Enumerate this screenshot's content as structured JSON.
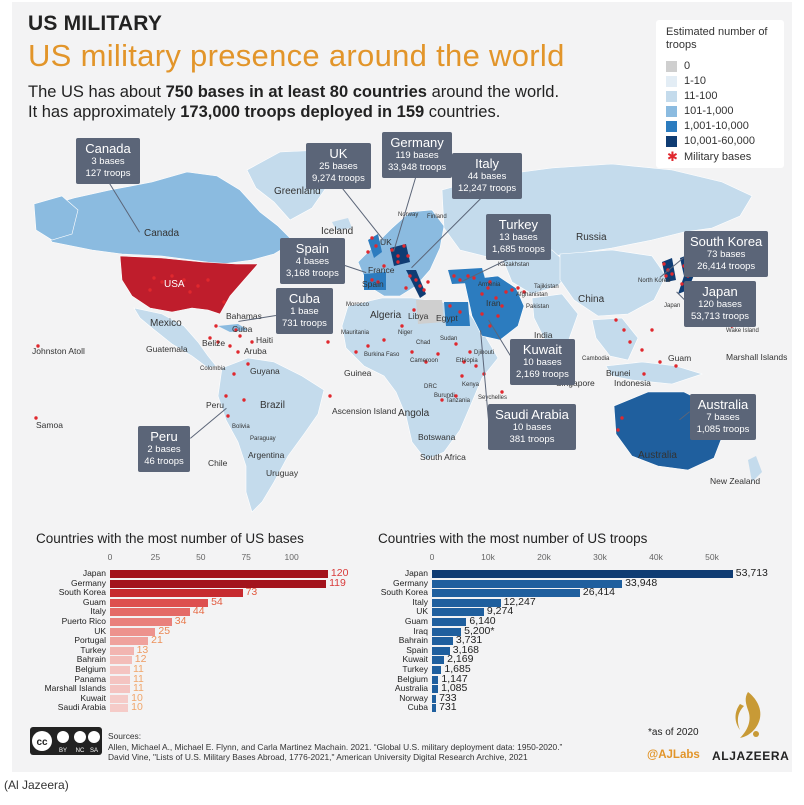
{
  "header": {
    "kicker": "US MILITARY",
    "title": "US military presence around the world",
    "sub1_a": "The US has about ",
    "sub1_b": "750 bases in at least 80 countries",
    "sub1_c": " around the world.",
    "sub2_a": "It has approximately ",
    "sub2_b": "173,000 troops deployed in 159",
    "sub2_c": " countries."
  },
  "legend": {
    "title": "Estimated number of troops",
    "items": [
      {
        "label": "0",
        "color": "#cfcfcf"
      },
      {
        "label": "1-10",
        "color": "#e3edf5"
      },
      {
        "label": "11-100",
        "color": "#c4dbec"
      },
      {
        "label": "101-1,000",
        "color": "#8bbbe0"
      },
      {
        "label": "1,001-10,000",
        "color": "#2c7cbf"
      },
      {
        "label": "10,001-60,000",
        "color": "#0f3c73"
      }
    ],
    "bases_label": "Military bases",
    "bases_color": "#e0282e"
  },
  "callouts": {
    "canada": {
      "name": "Canada",
      "l1": "3 bases",
      "l2": "127 troops"
    },
    "uk": {
      "name": "UK",
      "l1": "25 bases",
      "l2": "9,274 troops"
    },
    "germany": {
      "name": "Germany",
      "l1": "119 bases",
      "l2": "33,948 troops"
    },
    "italy": {
      "name": "Italy",
      "l1": "44 bases",
      "l2": "12,247 troops"
    },
    "turkey": {
      "name": "Turkey",
      "l1": "13 bases",
      "l2": "1,685 troops"
    },
    "spain": {
      "name": "Spain",
      "l1": "4 bases",
      "l2": "3,168 troops"
    },
    "cuba": {
      "name": "Cuba",
      "l1": "1 base",
      "l2": "731 troops"
    },
    "south_korea": {
      "name": "South Korea",
      "l1": "73 bases",
      "l2": "26,414 troops"
    },
    "japan": {
      "name": "Japan",
      "l1": "120 bases",
      "l2": "53,713 troops"
    },
    "kuwait": {
      "name": "Kuwait",
      "l1": "10 bases",
      "l2": "2,169 troops"
    },
    "saudi": {
      "name": "Saudi Arabia",
      "l1": "10 bases",
      "l2": "381 troops"
    },
    "australia": {
      "name": "Australia",
      "l1": "7 bases",
      "l2": "1,085 troops"
    },
    "peru": {
      "name": "Peru",
      "l1": "2 bases",
      "l2": "46 troops"
    }
  },
  "map_labels": {
    "greenland": "Greenland",
    "canada": "Canada",
    "usa": "USA",
    "mexico": "Mexico",
    "iceland": "Iceland",
    "norway": "Norway",
    "finland": "Finland",
    "uk": "UK",
    "france": "France",
    "spain": "Spain",
    "morocco": "Morocco",
    "algeria": "Algeria",
    "libya": "Libya",
    "egypt": "Egypt",
    "mauritania": "Mauritania",
    "niger": "Niger",
    "chad": "Chad",
    "sudan": "Sudan",
    "burkina": "Burkina Faso",
    "guinea": "Guinea",
    "cameroon": "Cameroon",
    "ethiopia": "Ethiopia",
    "djibouti": "Djibouti",
    "drc": "DRC",
    "burundi": "Burundi",
    "tanzania": "Tanzania",
    "kenya": "Kenya",
    "seychelles": "Seychelles",
    "angola": "Angola",
    "botswana": "Botswana",
    "south_africa": "South Africa",
    "ascension": "Ascension Island",
    "russia": "Russia",
    "kazakhstan": "Kazakhstan",
    "china": "China",
    "armenia": "Armenia",
    "iran": "Iran",
    "afghanistan": "Afghanistan",
    "pakistan": "Pakistan",
    "tajikistan": "Tajikistan",
    "india": "India",
    "north_korea": "North Korea",
    "japan": "Japan",
    "cambodia": "Cambodia",
    "singapore": "Singapore",
    "brunei": "Brunei",
    "indonesia": "Indonesia",
    "guam": "Guam",
    "wake": "Wake Island",
    "marshall": "Marshall Islands",
    "australia": "Australia",
    "new_zealand": "New Zealand",
    "bahamas": "Bahamas",
    "cuba": "Cuba",
    "haiti": "Haiti",
    "belize": "Belize",
    "guatemala": "Guatemala",
    "aruba": "Aruba",
    "colombia": "Colombia",
    "guyana": "Guyana",
    "peru": "Peru",
    "brazil": "Brazil",
    "bolivia": "Bolivia",
    "paraguay": "Paraguay",
    "argentina": "Argentina",
    "chile": "Chile",
    "uruguay": "Uruguay",
    "johnston": "Johnston Atoll",
    "samoa": "Samoa"
  },
  "chart_data": [
    {
      "type": "bar",
      "orientation": "horizontal",
      "title": "Countries with the most number of US bases",
      "xlim": [
        0,
        125
      ],
      "xticks": [
        "0",
        "25",
        "50",
        "75",
        "100"
      ],
      "categories": [
        "Japan",
        "Germany",
        "South Korea",
        "Guam",
        "Italy",
        "Puerto Rico",
        "UK",
        "Portugal",
        "Turkey",
        "Bahrain",
        "Belgium",
        "Panama",
        "Marshall Islands",
        "Kuwait",
        "Saudi Arabia"
      ],
      "values": [
        120,
        119,
        73,
        54,
        44,
        34,
        25,
        21,
        13,
        12,
        11,
        11,
        11,
        10,
        10
      ],
      "labels": [
        "120",
        "119",
        "73",
        "54",
        "44",
        "34",
        "25",
        "21",
        "13",
        "12",
        "11",
        "11",
        "11",
        "10",
        "10"
      ],
      "colors": [
        "#a3131c",
        "#a3131c",
        "#c62a2f",
        "#dd4f4f",
        "#e46a67",
        "#e9807c",
        "#ed928d",
        "#efa29d",
        "#f2b5b1",
        "#f3bdb9",
        "#f4c4c1",
        "#f4c4c1",
        "#f4c4c1",
        "#f5cbc8",
        "#f5cbc8"
      ],
      "label_colors": [
        "#d93a3a",
        "#d93a3a",
        "#e25a3f",
        "#e25a3f",
        "#e76b45",
        "#e97a4c",
        "#ea8653",
        "#ec9059",
        "#ee9b62",
        "#ee9b62",
        "#f0a66b",
        "#f0a66b",
        "#f0a66b",
        "#f0a66b",
        "#f0a66b"
      ]
    },
    {
      "type": "bar",
      "orientation": "horizontal",
      "title": "Countries with the most number of US troops",
      "xlim": [
        0,
        55000
      ],
      "xticks": [
        "0",
        "10k",
        "20k",
        "30k",
        "40k",
        "50k"
      ],
      "categories": [
        "Japan",
        "Germany",
        "South Korea",
        "Italy",
        "UK",
        "Guam",
        "Iraq",
        "Bahrain",
        "Spain",
        "Kuwait",
        "Turkey",
        "Belgium",
        "Australia",
        "Norway",
        "Cuba"
      ],
      "values": [
        53713,
        33948,
        26414,
        12247,
        9274,
        6140,
        5200,
        3731,
        3168,
        2169,
        1685,
        1147,
        1085,
        733,
        731
      ],
      "labels": [
        "53,713",
        "33,948",
        "26,414",
        "12,247",
        "9,274",
        "6,140",
        "5,200*",
        "3,731",
        "3,168",
        "2,169",
        "1,685",
        "1,147",
        "1,085",
        "733",
        "731"
      ],
      "color": "#1f5f9e",
      "top_color": "#0f3c73",
      "note": "*as of 2020"
    }
  ],
  "footer": {
    "sources_label": "Sources:",
    "source1": "Allen, Michael A., Michael E. Flynn, and Carla Martinez Machain. 2021. “Global U.S. military deployment data: 1950-2020.”",
    "source2": "David Vine, \"Lists of U.S. Military Bases Abroad, 1776-2021,\" American University Digital Research Archive, 2021",
    "license_by": "BY",
    "license_nc": "NC",
    "license_sa": "SA",
    "handle": "@AJLabs",
    "brand": "ALJAZEERA",
    "credit": "(Al Jazeera)"
  }
}
